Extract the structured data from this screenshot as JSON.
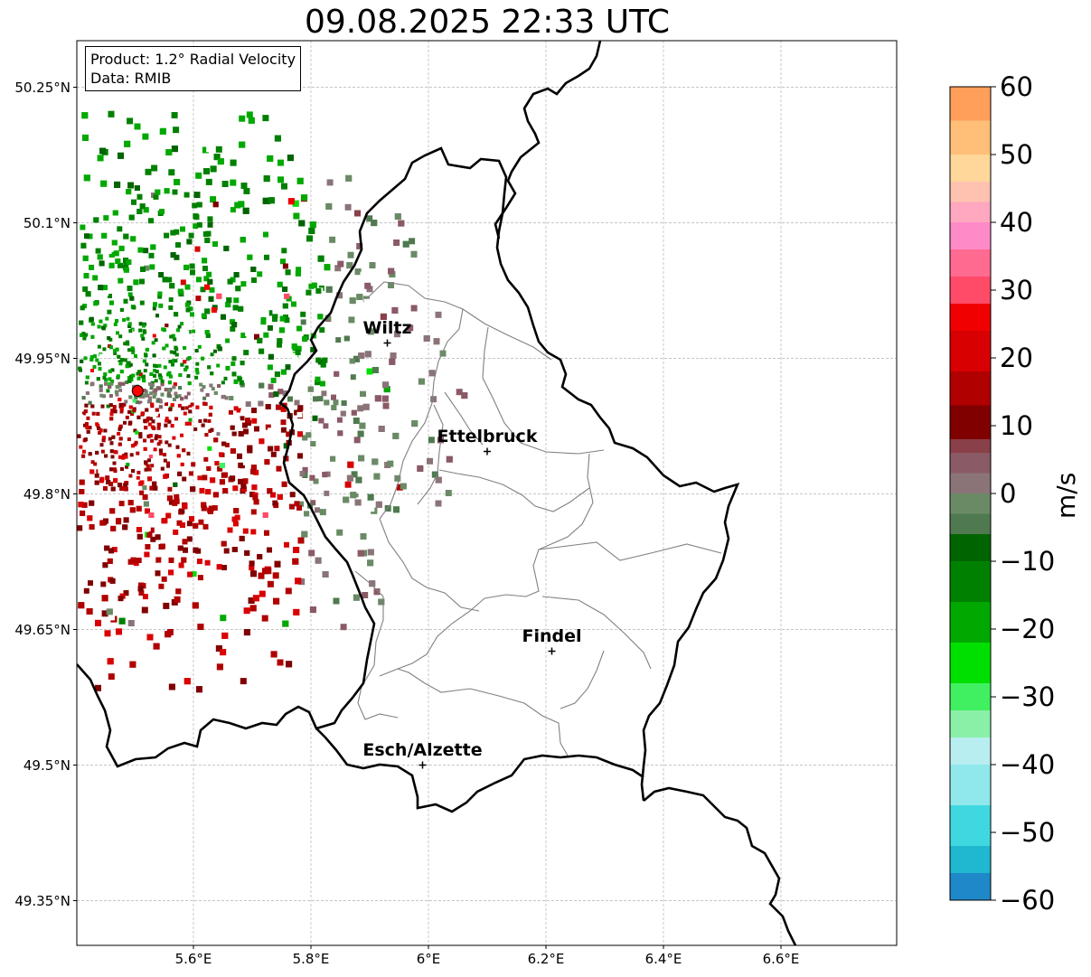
{
  "title": "09.08.2025 22:33 UTC",
  "info": {
    "product": "Product: 1.2° Radial Velocity",
    "data": "Data: RMIB"
  },
  "axes": {
    "lat_ticks": [
      {
        "value": 50.25,
        "label": "50.25°N"
      },
      {
        "value": 50.1,
        "label": "50.1°N"
      },
      {
        "value": 49.95,
        "label": "49.95°N"
      },
      {
        "value": 49.8,
        "label": "49.8°N"
      },
      {
        "value": 49.65,
        "label": "49.65°N"
      },
      {
        "value": 49.5,
        "label": "49.5°N"
      },
      {
        "value": 49.35,
        "label": "49.35°N"
      }
    ],
    "lon_ticks": [
      {
        "value": 5.6,
        "label": "5.6°E"
      },
      {
        "value": 5.8,
        "label": "5.8°E"
      },
      {
        "value": 6.0,
        "label": "6°E"
      },
      {
        "value": 6.2,
        "label": "6.2°E"
      },
      {
        "value": 6.4,
        "label": "6.4°E"
      },
      {
        "value": 6.6,
        "label": "6.6°E"
      }
    ],
    "lon_range": [
      5.4,
      6.8
    ],
    "lat_range": [
      49.3,
      50.3
    ]
  },
  "cities": [
    {
      "name": "Wiltz",
      "lon": 5.93,
      "lat": 49.967
    },
    {
      "name": "Ettelbruck",
      "lon": 6.1,
      "lat": 49.847
    },
    {
      "name": "Findel",
      "lon": 6.21,
      "lat": 49.626
    },
    {
      "name": "Esch/Alzette",
      "lon": 5.99,
      "lat": 49.5
    }
  ],
  "radar_site": {
    "lon": 5.505,
    "lat": 49.914
  },
  "colorbar": {
    "unit": "m/s",
    "min": -60,
    "max": 60,
    "ticks": [
      {
        "value": 60,
        "label": "60"
      },
      {
        "value": 50,
        "label": "50"
      },
      {
        "value": 40,
        "label": "40"
      },
      {
        "value": 30,
        "label": "30"
      },
      {
        "value": 20,
        "label": "20"
      },
      {
        "value": 10,
        "label": "10"
      },
      {
        "value": 0,
        "label": "0"
      },
      {
        "value": -10,
        "label": "−10"
      },
      {
        "value": -20,
        "label": "−20"
      },
      {
        "value": -30,
        "label": "−30"
      },
      {
        "value": -40,
        "label": "−40"
      },
      {
        "value": -50,
        "label": "−50"
      },
      {
        "value": -60,
        "label": "−60"
      }
    ],
    "stops": [
      {
        "from": 55,
        "to": 60,
        "color": "#ff9f5a"
      },
      {
        "from": 50,
        "to": 55,
        "color": "#ffbf78"
      },
      {
        "from": 46,
        "to": 50,
        "color": "#ffd79a"
      },
      {
        "from": 43,
        "to": 46,
        "color": "#ffc2b0"
      },
      {
        "from": 40,
        "to": 43,
        "color": "#ffa8c0"
      },
      {
        "from": 36,
        "to": 40,
        "color": "#ff8ac8"
      },
      {
        "from": 32,
        "to": 36,
        "color": "#ff6a90"
      },
      {
        "from": 28,
        "to": 32,
        "color": "#ff4a68"
      },
      {
        "from": 24,
        "to": 28,
        "color": "#f00000"
      },
      {
        "from": 18,
        "to": 24,
        "color": "#d80000"
      },
      {
        "from": 13,
        "to": 18,
        "color": "#b00000"
      },
      {
        "from": 8,
        "to": 13,
        "color": "#800000"
      },
      {
        "from": 6,
        "to": 8,
        "color": "#8a4048"
      },
      {
        "from": 3,
        "to": 6,
        "color": "#8a5a66"
      },
      {
        "from": 0,
        "to": 3,
        "color": "#8a7478"
      },
      {
        "from": -3,
        "to": 0,
        "color": "#6a8a66"
      },
      {
        "from": -6,
        "to": -3,
        "color": "#4f7a4f"
      },
      {
        "from": -10,
        "to": -6,
        "color": "#006400"
      },
      {
        "from": -16,
        "to": -10,
        "color": "#008000"
      },
      {
        "from": -22,
        "to": -16,
        "color": "#00a800"
      },
      {
        "from": -28,
        "to": -22,
        "color": "#00e000"
      },
      {
        "from": -32,
        "to": -28,
        "color": "#40f060"
      },
      {
        "from": -36,
        "to": -32,
        "color": "#8af0a8"
      },
      {
        "from": -40,
        "to": -36,
        "color": "#b8eef0"
      },
      {
        "from": -46,
        "to": -40,
        "color": "#90e8ec"
      },
      {
        "from": -52,
        "to": -46,
        "color": "#40d8e0"
      },
      {
        "from": -56,
        "to": -52,
        "color": "#20b8d0"
      },
      {
        "from": -60,
        "to": -56,
        "color": "#1e88c8"
      }
    ]
  },
  "colors": {
    "border": "#000000",
    "canton": "#808080",
    "grid": "#b0b0b0",
    "site_marker": "#ff0000"
  }
}
